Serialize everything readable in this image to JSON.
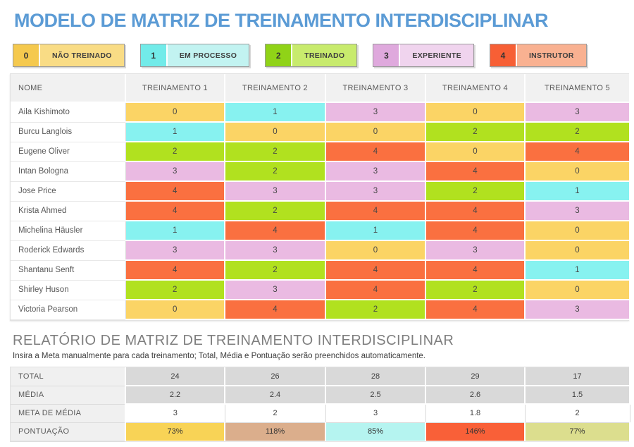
{
  "page": {
    "title": "MODELO DE MATRIZ DE TREINAMENTO INTERDISCIPLINAR",
    "title_color": "#5B9BD5"
  },
  "legend": {
    "items": [
      {
        "value": "0",
        "label": "NÃO TREINADO",
        "value_color": "#F5C94E",
        "label_color": "#F9DC85"
      },
      {
        "value": "1",
        "label": "EM PROCESSO",
        "value_color": "#72EBE9",
        "label_color": "#C2F3F1"
      },
      {
        "value": "2",
        "label": "TREINADO",
        "value_color": "#90D317",
        "label_color": "#C8EB6D"
      },
      {
        "value": "3",
        "label": "EXPERIENTE",
        "value_color": "#DFA9DD",
        "label_color": "#F0D4EE"
      },
      {
        "value": "4",
        "label": "INSTRUTOR",
        "value_color": "#F75F35",
        "label_color": "#F9B191"
      }
    ]
  },
  "matrix": {
    "columns": [
      "NOME",
      "TREINAMENTO 1",
      "TREINAMENTO 2",
      "TREINAMENTO 3",
      "TREINAMENTO 4",
      "TREINAMENTO 5"
    ],
    "score_colors": {
      "0": "#FBD465",
      "1": "#87F2F0",
      "2": "#B1E11F",
      "3": "#EABAE2",
      "4": "#FA7040"
    },
    "rows": [
      {
        "name": "Aila Kishimoto",
        "scores": [
          0,
          1,
          3,
          0,
          3
        ]
      },
      {
        "name": "Burcu Langlois",
        "scores": [
          1,
          0,
          0,
          2,
          2
        ]
      },
      {
        "name": "Eugene Oliver",
        "scores": [
          2,
          2,
          4,
          0,
          4
        ]
      },
      {
        "name": "Intan Bologna",
        "scores": [
          3,
          2,
          3,
          4,
          0
        ]
      },
      {
        "name": "Jose Price",
        "scores": [
          4,
          3,
          3,
          2,
          1
        ]
      },
      {
        "name": "Krista Ahmed",
        "scores": [
          4,
          2,
          4,
          4,
          3
        ]
      },
      {
        "name": "Michelina Häusler",
        "scores": [
          1,
          4,
          1,
          4,
          0
        ]
      },
      {
        "name": "Roderick Edwards",
        "scores": [
          3,
          3,
          0,
          3,
          0
        ]
      },
      {
        "name": "Shantanu Senft",
        "scores": [
          4,
          2,
          4,
          4,
          1
        ]
      },
      {
        "name": "Shirley Huson",
        "scores": [
          2,
          3,
          4,
          2,
          0
        ]
      },
      {
        "name": "Victoria Pearson",
        "scores": [
          0,
          4,
          2,
          4,
          3
        ]
      }
    ]
  },
  "report": {
    "title": "RELATÓRIO DE MATRIZ DE TREINAMENTO INTERDISCIPLINAR",
    "subtitle": "Insira a Meta manualmente para cada treinamento; Total, Média e Pontuação serão preenchidos automaticamente.",
    "rows": [
      {
        "label": "TOTAL",
        "values": [
          "24",
          "26",
          "28",
          "29",
          "17"
        ],
        "cell_style": "gray",
        "editable": false
      },
      {
        "label": "MÉDIA",
        "values": [
          "2.2",
          "2.4",
          "2.5",
          "2.6",
          "1.5"
        ],
        "cell_style": "gray",
        "editable": false
      },
      {
        "label": "META DE MÉDIA",
        "values": [
          "3",
          "2",
          "3",
          "1.8",
          "2"
        ],
        "cell_style": "white",
        "editable": true
      },
      {
        "label": "PONTUAÇÃO",
        "values": [
          "73%",
          "118%",
          "85%",
          "146%",
          "77%"
        ],
        "cell_style": "colored",
        "editable": false,
        "cell_colors": [
          "#F8D356",
          "#DBAE8C",
          "#B5F4F0",
          "#F96038",
          "#DCDE8E"
        ]
      }
    ]
  }
}
